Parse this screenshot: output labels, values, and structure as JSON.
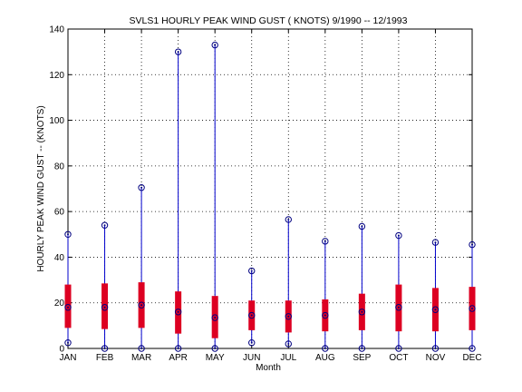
{
  "chart_data": {
    "type": "box",
    "title": "SVLS1  HOURLY PEAK WIND GUST ( KNOTS) 9/1990 -- 12/1993",
    "xlabel": "Month",
    "ylabel": "HOURLY PEAK WIND GUST --  (KNOTS)",
    "ylim": [
      0,
      140
    ],
    "yticks": [
      0,
      20,
      40,
      60,
      80,
      100,
      120,
      140
    ],
    "grid": true,
    "categories": [
      "JAN",
      "FEB",
      "MAR",
      "APR",
      "MAY",
      "JUN",
      "JUL",
      "AUG",
      "SEP",
      "OCT",
      "NOV",
      "DEC"
    ],
    "series": [
      {
        "min": 2.5,
        "q1": 9,
        "median": 18,
        "q3": 28,
        "max": 50
      },
      {
        "min": 0,
        "q1": 8.5,
        "median": 18,
        "q3": 28.5,
        "max": 54
      },
      {
        "min": 0,
        "q1": 9,
        "median": 19,
        "q3": 29,
        "max": 70.5
      },
      {
        "min": 0,
        "q1": 6.5,
        "median": 16,
        "q3": 25,
        "max": 130
      },
      {
        "min": 0,
        "q1": 4.5,
        "median": 13.5,
        "q3": 23,
        "max": 133
      },
      {
        "min": 2.5,
        "q1": 8,
        "median": 14.5,
        "q3": 21,
        "max": 34
      },
      {
        "min": 2,
        "q1": 7,
        "median": 14,
        "q3": 21,
        "max": 56.5
      },
      {
        "min": 0,
        "q1": 7.5,
        "median": 14.5,
        "q3": 21.5,
        "max": 47
      },
      {
        "min": 0,
        "q1": 8,
        "median": 16,
        "q3": 24,
        "max": 53.5
      },
      {
        "min": 0,
        "q1": 7.5,
        "median": 18,
        "q3": 28,
        "max": 49.5
      },
      {
        "min": 0,
        "q1": 7.5,
        "median": 17,
        "q3": 26.5,
        "max": 46.5
      },
      {
        "min": 0,
        "q1": 8,
        "median": 17.5,
        "q3": 27,
        "max": 45.5
      }
    ],
    "colors": {
      "whisker": "#0000cc",
      "box": "#dd0022",
      "grid": "#000000",
      "marker": "#000080"
    }
  }
}
